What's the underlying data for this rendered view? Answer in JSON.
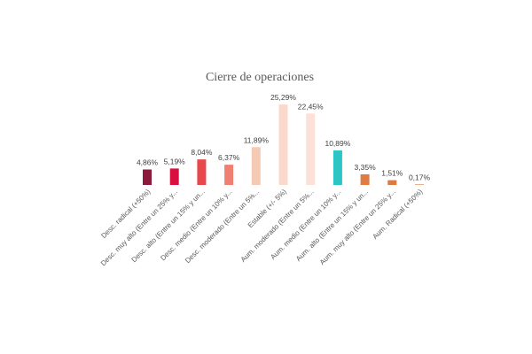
{
  "chart_data": {
    "type": "bar",
    "title": "Cierre de operaciones",
    "xlabel": "",
    "ylabel": "",
    "ylim": [
      0,
      27
    ],
    "grid": false,
    "legend": "none",
    "categories": [
      "Desc. radical (+50%)",
      "Desc. muy alto (Entre un 25% y...",
      "Desc. alto (Entre un 15% y un...",
      "Desc. medio (Entre un 10% y...",
      "Desc. moderado (Entre un 5%...",
      "Estable (+/- 5%)",
      "Aum. moderado (Entre un 5%...",
      "Aum. medio (Entre un 10% y...",
      "Aum. alto (Entre un 15% y un...",
      "Aum. muy alto (Entre un 25% y...",
      "Aum. Radical (+50%)"
    ],
    "values": [
      4.86,
      5.19,
      8.04,
      6.37,
      11.89,
      25.29,
      22.45,
      10.89,
      3.35,
      1.51,
      0.17
    ],
    "value_labels": [
      "4,86%",
      "5,19%",
      "8,04%",
      "6,37%",
      "11,89%",
      "25,29%",
      "22,45%",
      "10,89%",
      "3,35%",
      "1,51%",
      "0,17%"
    ],
    "colors": [
      "#8b1a3c",
      "#d90f3f",
      "#e8484b",
      "#f07f73",
      "#f6c9b5",
      "#fbd8cc",
      "#fbe1d7",
      "#2cc5c3",
      "#e07b45",
      "#d87b45",
      "#d87b45"
    ]
  }
}
